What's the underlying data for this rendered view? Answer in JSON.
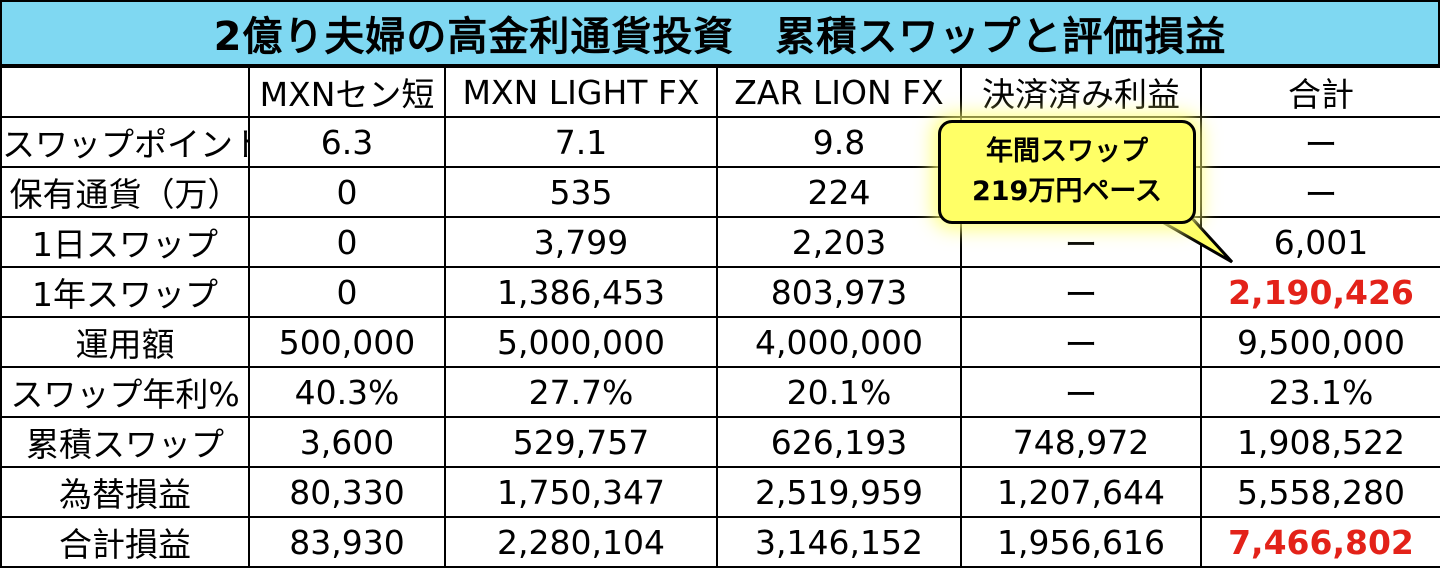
{
  "title": "2億り夫婦の高金利通貨投資　累積スワップと評価損益",
  "table": {
    "columns": [
      "",
      "MXNセン短",
      "MXN LIGHT FX",
      "ZAR LION FX",
      "決済済み利益",
      "合計"
    ],
    "rows": [
      {
        "label": "スワップポイント",
        "cells": [
          "6.3",
          "7.1",
          "9.8",
          "",
          "ー"
        ]
      },
      {
        "label": "保有通貨（万）",
        "cells": [
          "0",
          "535",
          "224",
          "",
          "ー"
        ]
      },
      {
        "label": "1日スワップ",
        "cells": [
          "0",
          "3,799",
          "2,203",
          "ー",
          "6,001"
        ]
      },
      {
        "label": "1年スワップ",
        "cells": [
          "0",
          "1,386,453",
          "803,973",
          "ー",
          "2,190,426"
        ]
      },
      {
        "label": "運用額",
        "cells": [
          "500,000",
          "5,000,000",
          "4,000,000",
          "ー",
          "9,500,000"
        ]
      },
      {
        "label": "スワップ年利%",
        "cells": [
          "40.3%",
          "27.7%",
          "20.1%",
          "ー",
          "23.1%"
        ]
      },
      {
        "label": "累積スワップ",
        "cells": [
          "3,600",
          "529,757",
          "626,193",
          "748,972",
          "1,908,522"
        ]
      },
      {
        "label": "為替損益",
        "cells": [
          "80,330",
          "1,750,347",
          "2,519,959",
          "1,207,644",
          "5,558,280"
        ]
      },
      {
        "label": "合計損益",
        "cells": [
          "83,930",
          "2,280,104",
          "3,146,152",
          "1,956,616",
          "7,466,802"
        ]
      }
    ]
  },
  "callout": {
    "line1": "年間スワップ",
    "line2": "219万円ペース"
  },
  "colors": {
    "title_bg": "#7fd8f2",
    "highlight_text": "#e32219",
    "callout_bg": "#ffff66"
  }
}
